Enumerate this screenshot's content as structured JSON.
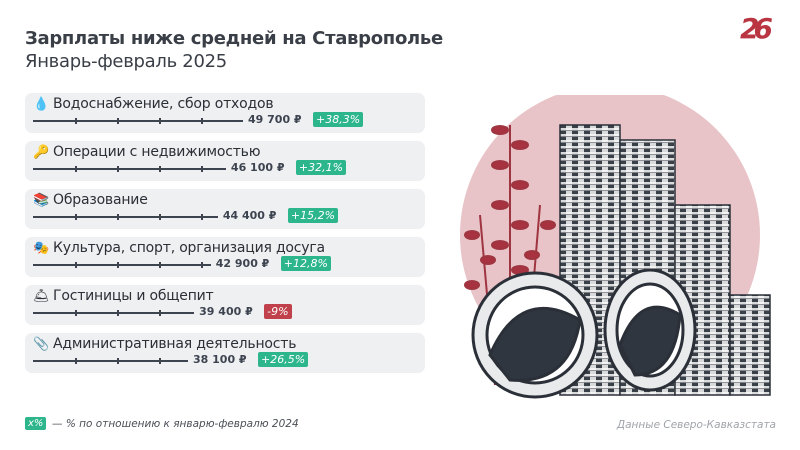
{
  "header": {
    "title": "Зарплаты ниже средней на Ставрополье",
    "subtitle": "Январь-февраль 2025",
    "logo": "26"
  },
  "colors": {
    "positive": "#2db58c",
    "negative": "#c0404b",
    "logo": "#b93541",
    "illustration_bg": "#e8c3c7"
  },
  "chart_data": {
    "type": "bar",
    "orientation": "horizontal",
    "unit": "₽",
    "categories": [
      "Водоснабжение, сбор отходов",
      "Операции с недвижимостью",
      "Образование",
      "Культура, спорт, организация досуга",
      "Гостиницы и общепит",
      "Административная деятельность"
    ],
    "values": [
      49700,
      46100,
      44400,
      42900,
      39400,
      38100
    ],
    "value_labels": [
      "49 700 ₽",
      "46 100 ₽",
      "44 400 ₽",
      "42 900 ₽",
      "39 400 ₽",
      "38 100 ₽"
    ],
    "changes": [
      "+38,3%",
      "+32,1%",
      "+15,2%",
      "+12,8%",
      "-9%",
      "+26,5%"
    ],
    "icons": [
      "droplet-icon",
      "key-icon",
      "books-icon",
      "theater-masks-icon",
      "service-bell-icon",
      "paperclip-icon"
    ]
  },
  "footer": {
    "badge": "x%",
    "note": "— % по отношению к январю-февралю 2024",
    "source": "Данные Северо-Кавказстата"
  }
}
